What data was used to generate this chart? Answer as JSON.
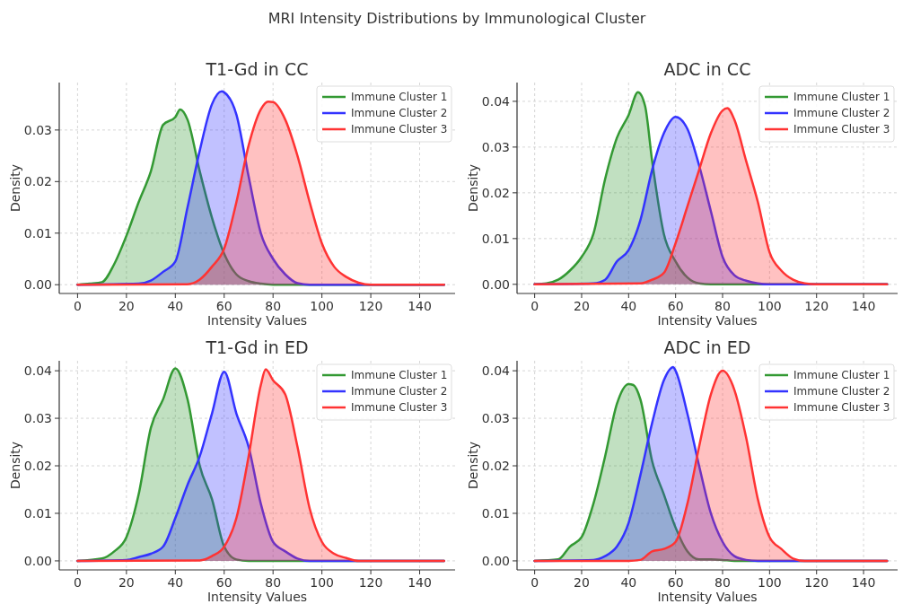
{
  "chart_data": [
    {
      "type": "area",
      "title": "T1-Gd in CC",
      "xlabel": "Intensity Values",
      "ylabel": "Density",
      "annotations": [
        "MRI Intensity Distributions by Immunological Cluster"
      ],
      "xlim": [
        -7.5,
        154.5
      ],
      "ylim": [
        -0.0017,
        0.0392
      ],
      "xticks": [
        0,
        20,
        40,
        60,
        80,
        100,
        120,
        140
      ],
      "yticks": [
        {
          "value": 0,
          "label": "0.00"
        },
        {
          "value": 0.01,
          "label": "0.01"
        },
        {
          "value": 0.02,
          "label": "0.02"
        },
        {
          "value": 0.03,
          "label": "0.03"
        }
      ],
      "grid": true,
      "legend": "top right",
      "series": [
        {
          "name": "Immune Cluster 1",
          "color": "#339933",
          "x": [
            0,
            5,
            10,
            15,
            20,
            25,
            30,
            35,
            40,
            42,
            45,
            50,
            55,
            60,
            65,
            70,
            75,
            80,
            150
          ],
          "values": [
            0,
            0.0002,
            0.0005,
            0.004,
            0.0095,
            0.016,
            0.022,
            0.031,
            0.0325,
            0.034,
            0.032,
            0.022,
            0.013,
            0.006,
            0.002,
            0.0007,
            0.0002,
            0,
            0
          ]
        },
        {
          "name": "Immune Cluster 2",
          "color": "#3333ff",
          "x": [
            0,
            25,
            30,
            35,
            40,
            45,
            50,
            55,
            59,
            60,
            65,
            70,
            75,
            80,
            85,
            90,
            95,
            150
          ],
          "values": [
            0,
            0.0002,
            0.0008,
            0.0025,
            0.0045,
            0.015,
            0.026,
            0.035,
            0.0375,
            0.0373,
            0.033,
            0.021,
            0.01,
            0.005,
            0.002,
            0.0003,
            0,
            0
          ]
        },
        {
          "name": "Immune Cluster 3",
          "color": "#ff3333",
          "x": [
            0,
            45,
            50,
            55,
            60,
            65,
            70,
            75,
            78,
            80,
            85,
            90,
            95,
            100,
            105,
            110,
            115,
            120,
            150
          ],
          "values": [
            0,
            0.0001,
            0.001,
            0.0035,
            0.007,
            0.016,
            0.027,
            0.034,
            0.0355,
            0.0354,
            0.032,
            0.025,
            0.016,
            0.008,
            0.0035,
            0.0015,
            0.0004,
            0,
            0
          ]
        }
      ]
    },
    {
      "type": "area",
      "title": "ADC in CC",
      "xlabel": "Intensity Values",
      "ylabel": "Density",
      "xlim": [
        -7.5,
        154.5
      ],
      "ylim": [
        -0.002,
        0.0441
      ],
      "xticks": [
        0,
        20,
        40,
        60,
        80,
        100,
        120,
        140
      ],
      "yticks": [
        {
          "value": 0,
          "label": "0.00"
        },
        {
          "value": 0.01,
          "label": "0.01"
        },
        {
          "value": 0.02,
          "label": "0.02"
        },
        {
          "value": 0.03,
          "label": "0.03"
        },
        {
          "value": 0.04,
          "label": "0.04"
        }
      ],
      "grid": true,
      "legend": "top right",
      "series": [
        {
          "name": "Immune Cluster 1",
          "color": "#339933",
          "x": [
            0,
            5,
            10,
            15,
            20,
            25,
            30,
            35,
            40,
            44,
            47,
            50,
            55,
            60,
            65,
            70,
            75,
            150
          ],
          "values": [
            0,
            0.0002,
            0.001,
            0.003,
            0.006,
            0.011,
            0.023,
            0.032,
            0.037,
            0.042,
            0.039,
            0.027,
            0.011,
            0.005,
            0.0015,
            0.0002,
            0,
            0
          ]
        },
        {
          "name": "Immune Cluster 2",
          "color": "#3333ff",
          "x": [
            0,
            25,
            30,
            35,
            40,
            45,
            50,
            55,
            60,
            65,
            70,
            75,
            80,
            85,
            90,
            100,
            150
          ],
          "values": [
            0,
            0.0002,
            0.001,
            0.005,
            0.0075,
            0.014,
            0.025,
            0.033,
            0.0366,
            0.034,
            0.026,
            0.016,
            0.006,
            0.002,
            0.0008,
            0,
            0
          ]
        },
        {
          "name": "Immune Cluster 3",
          "color": "#ff3333",
          "x": [
            0,
            45,
            50,
            55,
            60,
            65,
            70,
            75,
            80,
            82,
            85,
            90,
            95,
            100,
            105,
            110,
            115,
            120,
            150
          ],
          "values": [
            0,
            0.0002,
            0.001,
            0.0025,
            0.009,
            0.017,
            0.025,
            0.033,
            0.038,
            0.0385,
            0.036,
            0.027,
            0.018,
            0.007,
            0.003,
            0.001,
            0.0002,
            0,
            0
          ]
        }
      ]
    },
    {
      "type": "area",
      "title": "T1-Gd in ED",
      "xlabel": "Intensity Values",
      "ylabel": "Density",
      "xlim": [
        -7.5,
        154.5
      ],
      "ylim": [
        -0.0019,
        0.0421
      ],
      "xticks": [
        0,
        20,
        40,
        60,
        80,
        100,
        120,
        140
      ],
      "yticks": [
        {
          "value": 0,
          "label": "0.00"
        },
        {
          "value": 0.01,
          "label": "0.01"
        },
        {
          "value": 0.02,
          "label": "0.02"
        },
        {
          "value": 0.03,
          "label": "0.03"
        },
        {
          "value": 0.04,
          "label": "0.04"
        }
      ],
      "grid": true,
      "legend": "top right",
      "series": [
        {
          "name": "Immune Cluster 1",
          "color": "#339933",
          "x": [
            0,
            10,
            15,
            20,
            25,
            30,
            35,
            40,
            45,
            50,
            55,
            60,
            65,
            70,
            150
          ],
          "values": [
            0,
            0.0005,
            0.002,
            0.005,
            0.014,
            0.028,
            0.034,
            0.0405,
            0.034,
            0.02,
            0.013,
            0.003,
            0.0003,
            0,
            0
          ]
        },
        {
          "name": "Immune Cluster 2",
          "color": "#3333ff",
          "x": [
            0,
            20,
            25,
            30,
            35,
            40,
            45,
            50,
            55,
            60,
            65,
            70,
            75,
            80,
            85,
            90,
            95,
            150
          ],
          "values": [
            0,
            0.0002,
            0.0008,
            0.0015,
            0.003,
            0.009,
            0.016,
            0.022,
            0.031,
            0.0398,
            0.031,
            0.024,
            0.012,
            0.004,
            0.002,
            0.0005,
            0,
            0
          ]
        },
        {
          "name": "Immune Cluster 3",
          "color": "#ff3333",
          "x": [
            0,
            50,
            55,
            60,
            65,
            70,
            75,
            77,
            80,
            85,
            90,
            95,
            100,
            105,
            110,
            115,
            150
          ],
          "values": [
            0,
            0.0001,
            0.001,
            0.003,
            0.009,
            0.022,
            0.037,
            0.0403,
            0.038,
            0.035,
            0.024,
            0.011,
            0.004,
            0.0015,
            0.0006,
            0,
            0
          ]
        }
      ]
    },
    {
      "type": "area",
      "title": "ADC in ED",
      "xlabel": "Intensity Values",
      "ylabel": "Density",
      "xlim": [
        -7.5,
        154.5
      ],
      "ylim": [
        -0.0019,
        0.0421
      ],
      "xticks": [
        0,
        20,
        40,
        60,
        80,
        100,
        120,
        140
      ],
      "yticks": [
        {
          "value": 0,
          "label": "0.00"
        },
        {
          "value": 0.01,
          "label": "0.01"
        },
        {
          "value": 0.02,
          "label": "0.02"
        },
        {
          "value": 0.03,
          "label": "0.03"
        },
        {
          "value": 0.04,
          "label": "0.04"
        }
      ],
      "grid": true,
      "legend": "top right",
      "series": [
        {
          "name": "Immune Cluster 1",
          "color": "#339933",
          "x": [
            0,
            10,
            15,
            20,
            25,
            30,
            35,
            40,
            42,
            45,
            50,
            55,
            60,
            65,
            70,
            75,
            80,
            85,
            150
          ],
          "values": [
            0,
            0.0003,
            0.003,
            0.005,
            0.012,
            0.022,
            0.033,
            0.0372,
            0.037,
            0.034,
            0.021,
            0.014,
            0.007,
            0.002,
            0.0003,
            0.0003,
            0.0002,
            0,
            0
          ]
        },
        {
          "name": "Immune Cluster 2",
          "color": "#3333ff",
          "x": [
            0,
            25,
            30,
            35,
            40,
            45,
            50,
            55,
            59,
            60,
            65,
            70,
            75,
            80,
            85,
            90,
            95,
            150
          ],
          "values": [
            0,
            0.0002,
            0.001,
            0.003,
            0.008,
            0.018,
            0.029,
            0.038,
            0.0408,
            0.04,
            0.031,
            0.02,
            0.01,
            0.004,
            0.001,
            0.0002,
            0,
            0
          ]
        },
        {
          "name": "Immune Cluster 3",
          "color": "#ff3333",
          "x": [
            0,
            40,
            45,
            50,
            55,
            60,
            65,
            70,
            75,
            80,
            85,
            90,
            95,
            100,
            105,
            110,
            115,
            150
          ],
          "values": [
            0,
            0,
            0.0002,
            0.002,
            0.0025,
            0.004,
            0.012,
            0.024,
            0.035,
            0.04,
            0.036,
            0.026,
            0.013,
            0.005,
            0.0025,
            0.0005,
            0,
            0
          ]
        }
      ]
    }
  ]
}
